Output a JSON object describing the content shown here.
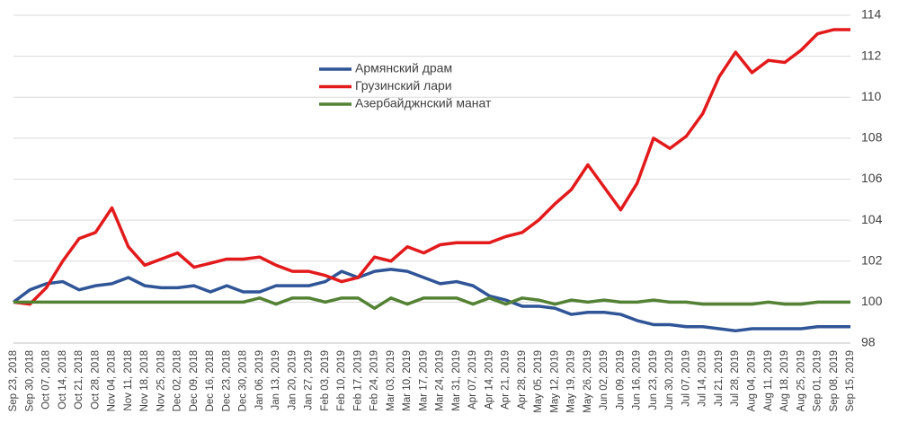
{
  "chart_data": {
    "type": "line",
    "categories": [
      "Sep 23, 2018",
      "Sep 30, 2018",
      "Oct 07, 2018",
      "Oct 14, 2018",
      "Oct 21, 2018",
      "Oct 28, 2018",
      "Nov 04, 2018",
      "Nov 11, 2018",
      "Nov 18, 2018",
      "Nov 25, 2018",
      "Dec 02, 2018",
      "Dec 09, 2018",
      "Dec 16, 2018",
      "Dec 23, 2018",
      "Dec 30, 2018",
      "Jan 06, 2019",
      "Jan 13, 2019",
      "Jan 20, 2019",
      "Jan 27, 2019",
      "Feb 03, 2019",
      "Feb 10, 2019",
      "Feb 17, 2019",
      "Feb 24, 2019",
      "Mar 03, 2019",
      "Mar 10, 2019",
      "Mar 17, 2019",
      "Mar 24, 2019",
      "Mar 31, 2019",
      "Apr 07, 2019",
      "Apr 14, 2019",
      "Apr 21, 2019",
      "Apr 28, 2019",
      "May 05, 2019",
      "May 12, 2019",
      "May 19, 2019",
      "May 26, 2019",
      "Jun 02, 2019",
      "Jun 09, 2019",
      "Jun 16, 2019",
      "Jun 23, 2019",
      "Jun 30, 2019",
      "Jul 07, 2019",
      "Jul 14, 2019",
      "Jul 21, 2019",
      "Jul 28, 2019",
      "Aug 04, 2019",
      "Aug 11, 2019",
      "Aug 18, 2019",
      "Aug 25, 2019",
      "Sep 01, 2019",
      "Sep 08, 2019",
      "Sep 15, 2019"
    ],
    "series": [
      {
        "name": "Армянский драм",
        "color": "#2f5597",
        "values": [
          100,
          100.6,
          100.9,
          101.0,
          100.6,
          100.8,
          100.9,
          101.2,
          100.8,
          100.7,
          100.7,
          100.8,
          100.5,
          100.8,
          100.5,
          100.5,
          100.8,
          100.8,
          100.8,
          101.0,
          101.5,
          101.2,
          101.5,
          101.6,
          101.5,
          101.2,
          100.9,
          101.0,
          100.8,
          100.3,
          100.1,
          99.8,
          99.8,
          99.7,
          99.4,
          99.5,
          99.5,
          99.4,
          99.1,
          98.9,
          98.9,
          98.8,
          98.8,
          98.7,
          98.6,
          98.7,
          98.7,
          98.7,
          98.7,
          98.8,
          98.8,
          98.8
        ]
      },
      {
        "name": "Грузинский лари",
        "color": "#e31a1c",
        "values": [
          100,
          99.9,
          100.7,
          102.0,
          103.1,
          103.4,
          104.6,
          102.7,
          101.8,
          102.1,
          102.4,
          101.7,
          101.9,
          102.1,
          102.1,
          102.2,
          101.8,
          101.5,
          101.5,
          101.3,
          101.0,
          101.2,
          102.2,
          102.0,
          102.7,
          102.4,
          102.8,
          102.9,
          102.9,
          102.9,
          103.2,
          103.4,
          104.0,
          104.8,
          105.5,
          106.7,
          105.6,
          104.5,
          105.8,
          108.0,
          107.5,
          108.1,
          109.2,
          111.0,
          112.2,
          111.2,
          111.8,
          111.7,
          112.3,
          113.1,
          113.3,
          113.3
        ]
      },
      {
        "name": "Азербайджнский манат",
        "color": "#548235",
        "values": [
          100,
          100,
          100,
          100,
          100,
          100,
          100,
          100,
          100,
          100,
          100,
          100,
          100,
          100,
          100,
          100.2,
          99.9,
          100.2,
          100.2,
          100.0,
          100.2,
          100.2,
          99.7,
          100.2,
          99.9,
          100.2,
          100.2,
          100.2,
          99.9,
          100.2,
          99.9,
          100.2,
          100.1,
          99.9,
          100.1,
          100.0,
          100.1,
          100.0,
          100.0,
          100.1,
          100.0,
          100.0,
          99.9,
          99.9,
          99.9,
          99.9,
          100.0,
          99.9,
          99.9,
          100.0,
          100.0,
          100.0
        ]
      }
    ],
    "ylim": [
      98,
      114
    ],
    "yticks": [
      98,
      100,
      102,
      104,
      106,
      108,
      110,
      112,
      114
    ],
    "grid": true,
    "y_axis_side": "right",
    "legend": "upper center"
  }
}
